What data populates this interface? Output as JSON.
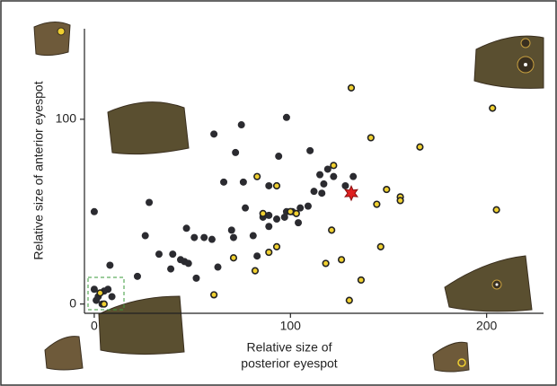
{
  "chart_data": {
    "type": "scatter",
    "xlabel": [
      "Relative size of",
      "posterior eyespot"
    ],
    "ylabel": "Relative size of anterior eyespot",
    "xlim": [
      -5,
      229
    ],
    "ylim": [
      -5,
      149
    ],
    "xticks": [
      0,
      100,
      200
    ],
    "yticks": [
      0,
      100
    ],
    "series": [
      {
        "marker": "dot",
        "color": "#2b2b30",
        "x": [
          0,
          0,
          2,
          5,
          7,
          1,
          4,
          9,
          8,
          22,
          28,
          26,
          33,
          39,
          40,
          44,
          47,
          46,
          48,
          52,
          51,
          56,
          60,
          61,
          63,
          66,
          71,
          72,
          75,
          76,
          70,
          77,
          81,
          83,
          86,
          89,
          89,
          89,
          94,
          93,
          97,
          98,
          98,
          101,
          104,
          105,
          110,
          109,
          112,
          115,
          116,
          119,
          122,
          128,
          132,
          117
        ],
        "values": [
          50,
          8,
          4,
          7,
          8,
          2,
          0,
          4,
          21,
          15,
          55,
          37,
          27,
          19,
          27,
          24,
          41,
          23,
          22,
          14,
          36,
          36,
          35,
          92,
          20,
          66,
          36,
          82,
          97,
          66,
          40,
          52,
          37,
          26,
          47,
          42,
          64,
          48,
          80,
          46,
          47,
          101,
          50,
          50,
          44,
          52,
          83,
          53,
          61,
          70,
          60,
          73,
          69,
          64,
          69,
          65
        ]
      },
      {
        "marker": "ring",
        "color": "#f0d030",
        "x": [
          5,
          3,
          61,
          71,
          83,
          82,
          86,
          93,
          93,
          100,
          103,
          121,
          122,
          118,
          126,
          131,
          130,
          136,
          141,
          144,
          146,
          149,
          156,
          156,
          166,
          203,
          205,
          89
        ],
        "values": [
          0,
          6,
          5,
          25,
          69,
          18,
          49,
          64,
          31,
          50,
          49,
          40,
          75,
          22,
          24,
          117,
          2,
          13,
          90,
          54,
          31,
          62,
          58,
          56,
          85,
          106,
          51,
          28
        ]
      },
      {
        "marker": "star",
        "color": "#e02020",
        "x": [
          131
        ],
        "values": [
          60
        ]
      }
    ]
  }
}
